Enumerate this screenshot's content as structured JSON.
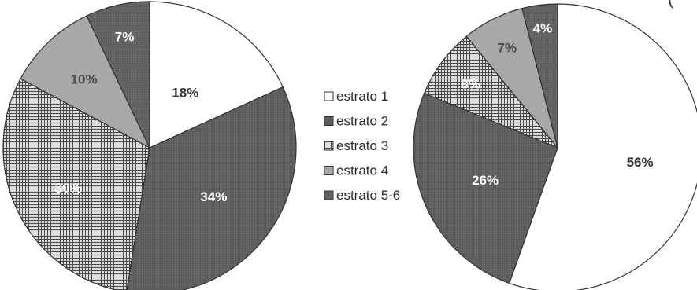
{
  "legend": {
    "entries": [
      "estrato 1",
      "estrato 2",
      "estrato 3",
      "estrato 4",
      "estrato 5-6"
    ]
  },
  "colors": {
    "estrato_1": "#ffffff",
    "estrato_2": "#5a5d5a",
    "estrato_3_base": "#dcdcdc",
    "estrato_3_grid": "#4a4a4a",
    "estrato_4": "#a8a8a8",
    "estrato_5_6": "#5e615e",
    "outline": "#333333"
  },
  "top_right_text_fragment": "(",
  "chart_data": [
    {
      "type": "pie",
      "categories": [
        "estrato 1",
        "estrato 2",
        "estrato 3",
        "estrato 4",
        "estrato 5-6"
      ],
      "values": [
        18,
        34,
        30,
        10,
        7
      ],
      "labels": [
        "18%",
        "34%",
        "30%",
        "10%",
        "7%"
      ],
      "legend": "between-charts"
    },
    {
      "type": "pie",
      "categories": [
        "estrato 1",
        "estrato 2",
        "estrato 3",
        "estrato 4",
        "estrato 5-6"
      ],
      "values": [
        56,
        26,
        8,
        7,
        4
      ],
      "labels": [
        "56%",
        "26%",
        "8%",
        "7%",
        "4%"
      ],
      "legend": "between-charts"
    }
  ]
}
